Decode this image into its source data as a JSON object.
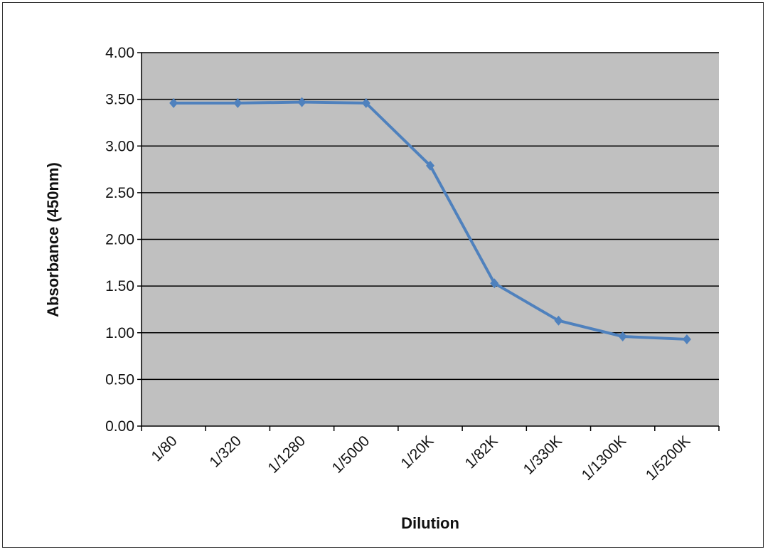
{
  "chart_data": {
    "type": "line",
    "title": "",
    "xlabel": "Dilution",
    "ylabel": "Absorbance (450nm)",
    "categories": [
      "1/80",
      "1/320",
      "1/1280",
      "1/5000",
      "1/20K",
      "1/82K",
      "1/330K",
      "1/1300K",
      "1/5200K"
    ],
    "series": [
      {
        "values": [
          3.46,
          3.46,
          3.47,
          3.46,
          2.79,
          1.53,
          1.13,
          0.96,
          0.93
        ]
      }
    ],
    "ylim": [
      0,
      4
    ],
    "yticks": [
      "0.00",
      "0.50",
      "1.00",
      "1.50",
      "2.00",
      "2.50",
      "3.00",
      "3.50",
      "4.00"
    ],
    "grid": true,
    "legend": "none",
    "colors": {
      "line": "#4f81bd",
      "plot_background": "#c0c0c0",
      "gridline": "#000000"
    }
  }
}
